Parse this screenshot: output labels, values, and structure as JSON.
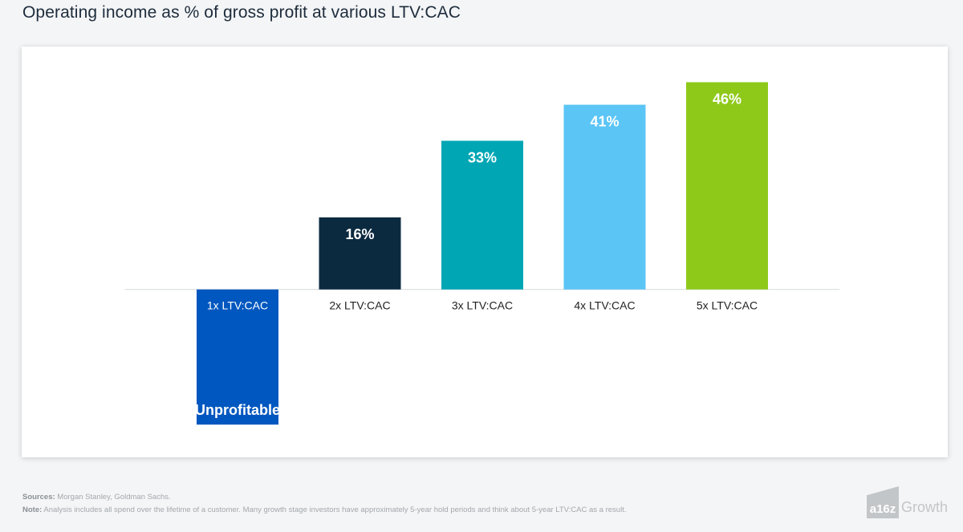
{
  "title": "Operating income as % of gross profit at various LTV:CAC",
  "chart_data": {
    "type": "bar",
    "title": "Operating income as % of gross profit at various LTV:CAC",
    "categories": [
      "1x LTV:CAC",
      "2x LTV:CAC",
      "3x LTV:CAC",
      "4x LTV:CAC",
      "5x LTV:CAC"
    ],
    "values": [
      -30,
      16,
      33,
      41,
      46
    ],
    "value_labels": [
      "Unprofitable",
      "16%",
      "33%",
      "41%",
      "46%"
    ],
    "colors": [
      "#0057bf",
      "#0b2a40",
      "#00a6b4",
      "#5bc5f5",
      "#8ec919"
    ],
    "ylim": [
      -33,
      50
    ],
    "xlabel": "",
    "ylabel": "",
    "grid": false,
    "legend": "none"
  },
  "footer": {
    "sources_label": "Sources:",
    "sources_text": "Morgan Stanley, Goldman Sachs.",
    "note_label": "Note:",
    "note_text": "Analysis includes all spend over the lifetime of a customer. Many growth stage investors have approximately 5-year hold periods and think about 5-year LTV:CAC as a result."
  },
  "brand": {
    "logo_text": "a16z",
    "word": "Growth"
  }
}
